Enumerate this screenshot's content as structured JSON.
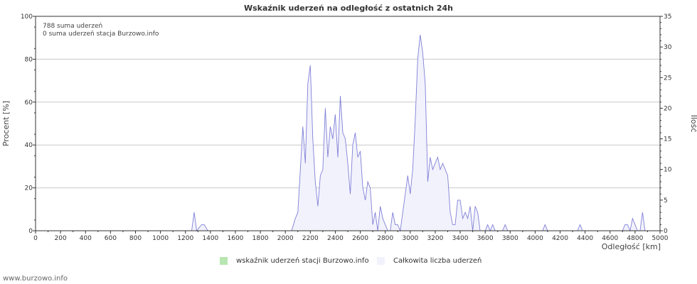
{
  "chart_data": {
    "type": "area",
    "title": "Wskaźnik uderzeń na odległość z ostatnich 24h",
    "xlabel": "Odległość   [km]",
    "ylabel_left": "Procent   [%]",
    "ylabel_right": "Ilość",
    "xlim": [
      0,
      5000
    ],
    "ylim_left": [
      0,
      100
    ],
    "ylim_right": [
      0,
      35
    ],
    "x_ticks": [
      0,
      200,
      400,
      600,
      800,
      1000,
      1200,
      1400,
      1600,
      1800,
      2000,
      2200,
      2400,
      2600,
      2800,
      3000,
      3200,
      3400,
      3600,
      3800,
      4000,
      4200,
      4400,
      4600,
      4800,
      5000
    ],
    "y_ticks_left": [
      0,
      20,
      40,
      60,
      80,
      100
    ],
    "y_ticks_right": [
      0,
      5,
      10,
      15,
      20,
      25,
      30,
      35
    ],
    "grid": true,
    "annotations": [
      "788 suma uderzeń",
      "0 suma uderzeń stacja Burzowo.info"
    ],
    "series": [
      {
        "name": "wskaźnik uderzeń stacji Burzowo.info",
        "color": "#b8e6b0",
        "axis": "left",
        "values": []
      },
      {
        "name": "Całkowita liczba uderzeń",
        "color": "#f2f2fc",
        "line_color": "#8080d8",
        "axis": "right",
        "x": [
          1250,
          1270,
          1290,
          1330,
          1350,
          1380,
          1410,
          2050,
          2080,
          2100,
          2120,
          2140,
          2160,
          2180,
          2200,
          2220,
          2240,
          2260,
          2280,
          2300,
          2320,
          2340,
          2360,
          2380,
          2400,
          2420,
          2440,
          2460,
          2480,
          2500,
          2520,
          2540,
          2560,
          2580,
          2600,
          2620,
          2640,
          2660,
          2680,
          2700,
          2720,
          2740,
          2760,
          2780,
          2800,
          2820,
          2840,
          2860,
          2880,
          2900,
          2920,
          2940,
          2960,
          2980,
          3000,
          3020,
          3040,
          3060,
          3080,
          3100,
          3120,
          3140,
          3160,
          3180,
          3200,
          3220,
          3240,
          3260,
          3280,
          3300,
          3320,
          3340,
          3360,
          3380,
          3400,
          3420,
          3440,
          3460,
          3480,
          3500,
          3520,
          3540,
          3560,
          3580,
          3600,
          3620,
          3640,
          3660,
          3680,
          3700,
          3720,
          3740,
          3760,
          3780,
          3820,
          3840,
          3860,
          3880,
          4060,
          4080,
          4100,
          4340,
          4360,
          4380,
          4700,
          4720,
          4740,
          4760,
          4780,
          4800,
          4820,
          4840,
          4860,
          4880,
          4900,
          4920
        ],
        "values": [
          0,
          3,
          0,
          1,
          1,
          0,
          0,
          0,
          2,
          3,
          10,
          17,
          11,
          24,
          27,
          15,
          8,
          4,
          9,
          10,
          20,
          12,
          17,
          15,
          19,
          12,
          22,
          16,
          15,
          11,
          6,
          14,
          16,
          12,
          13,
          7,
          5,
          8,
          7,
          1,
          3,
          0,
          4,
          2,
          1,
          0,
          0,
          3,
          1,
          1,
          0,
          3,
          6,
          9,
          6,
          10,
          18,
          28,
          32,
          29,
          24,
          8,
          12,
          10,
          11,
          12,
          10,
          11,
          10,
          9,
          3,
          1,
          1,
          5,
          5,
          2,
          3,
          2,
          4,
          0,
          4,
          3,
          0,
          0,
          0,
          1,
          0,
          1,
          0,
          0,
          0,
          0,
          1,
          0,
          0,
          0,
          0,
          0,
          0,
          1,
          0,
          0,
          1,
          0,
          0,
          1,
          1,
          0,
          2,
          1,
          0,
          0,
          3,
          0,
          0,
          0
        ]
      }
    ]
  },
  "footer": "www.burzowo.info"
}
